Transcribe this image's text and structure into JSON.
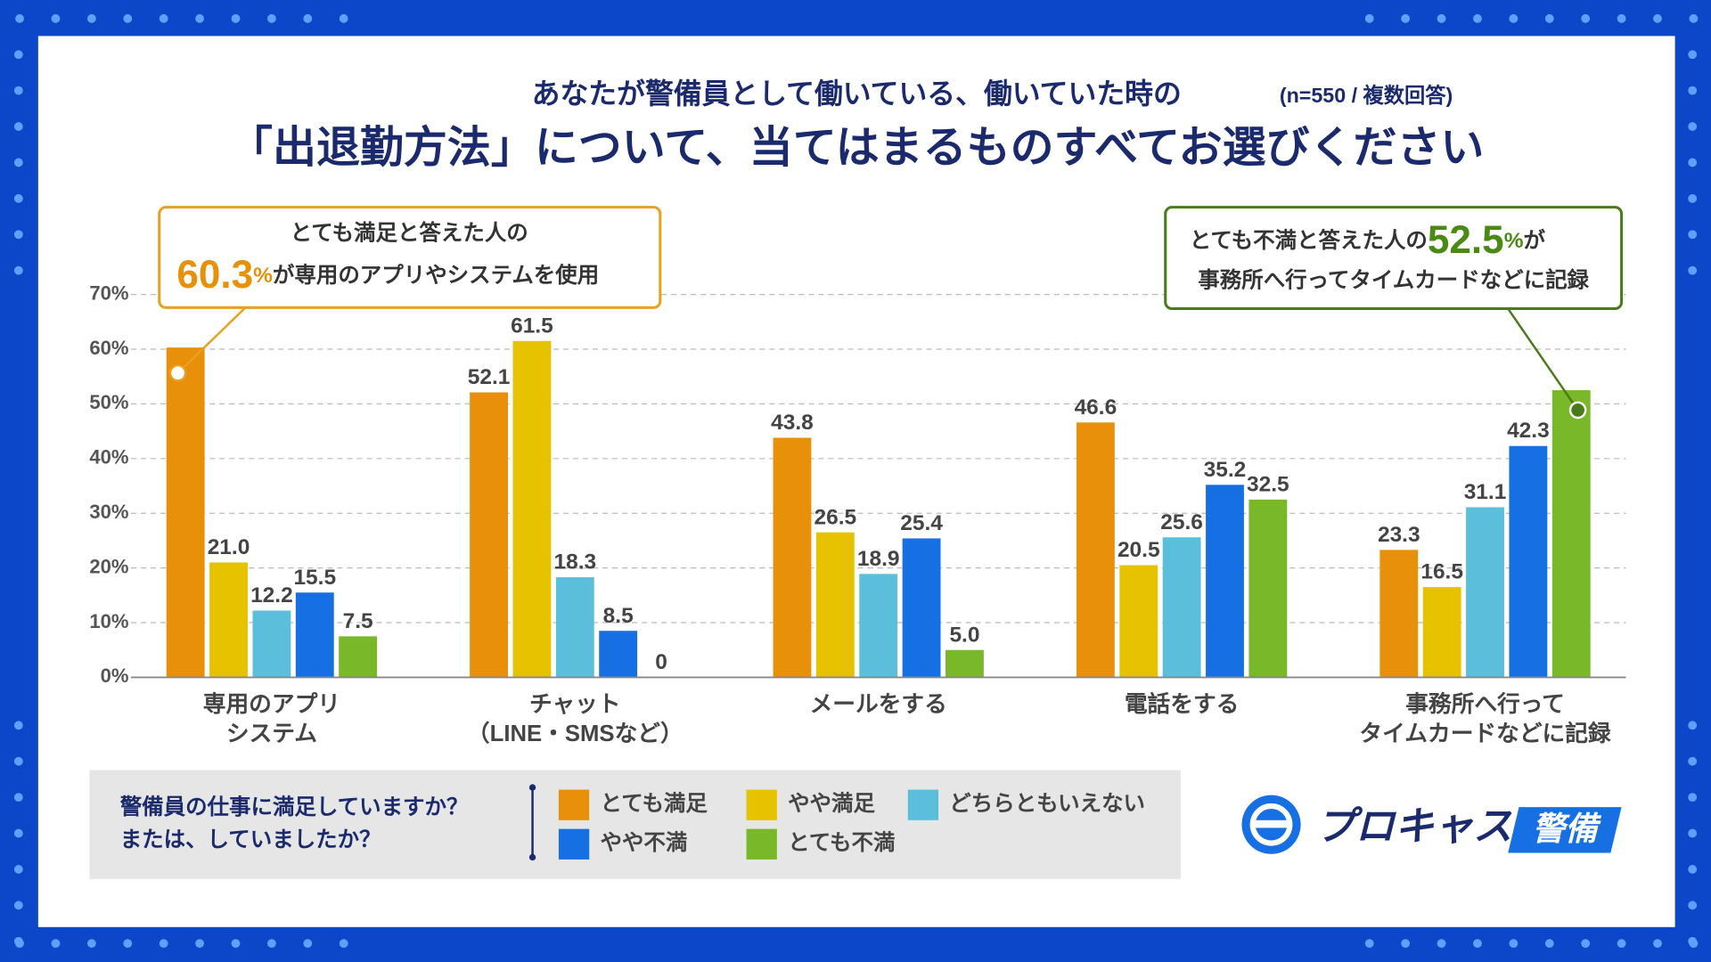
{
  "chart_data": {
    "type": "bar",
    "title": "あなたが警備員として働いている、働いていた時の",
    "subtitle": "(n=550 / 複数回答)",
    "question": "「出退勤方法」について、当てはまるものすべてお選びください",
    "categories": [
      [
        "専用のアプリ",
        "システム"
      ],
      [
        "チャット",
        "（LINE・SMSなど）"
      ],
      [
        "メールをする"
      ],
      [
        "電話をする"
      ],
      [
        "事務所へ行って",
        "タイムカードなどに記録"
      ]
    ],
    "series": [
      {
        "name": "とても満足",
        "color": "#e8900a",
        "values": [
          60.3,
          52.1,
          43.8,
          46.6,
          23.3
        ],
        "value_labels": [
          null,
          "52.1",
          "43.8",
          "46.6",
          "23.3"
        ]
      },
      {
        "name": "やや満足",
        "color": "#e6c200",
        "values": [
          21.0,
          61.5,
          26.5,
          20.5,
          16.5
        ],
        "value_labels": [
          "21.0",
          "61.5",
          "26.5",
          "20.5",
          "16.5"
        ]
      },
      {
        "name": "どちらともいえない",
        "color": "#5bbfdc",
        "values": [
          12.2,
          18.3,
          18.9,
          25.6,
          31.1
        ],
        "value_labels": [
          "12.2",
          "18.3",
          "18.9",
          "25.6",
          "31.1"
        ]
      },
      {
        "name": "やや不満",
        "color": "#1670e4",
        "values": [
          15.5,
          8.5,
          25.4,
          35.2,
          42.3
        ],
        "value_labels": [
          "15.5",
          "8.5",
          "25.4",
          "35.2",
          "42.3"
        ]
      },
      {
        "name": "とても不満",
        "color": "#79b828",
        "values": [
          7.5,
          0,
          5.0,
          32.5,
          52.5
        ],
        "value_labels": [
          "7.5",
          "0",
          "5.0",
          "32.5",
          null
        ]
      }
    ],
    "ylim": [
      0,
      70
    ],
    "yticks": [
      {
        "value": 0,
        "label": "0%"
      },
      {
        "value": 10,
        "label": "10%"
      },
      {
        "value": 20,
        "label": "20%"
      },
      {
        "value": 30,
        "label": "30%"
      },
      {
        "value": 40,
        "label": "40%"
      },
      {
        "value": 50,
        "label": "50%"
      },
      {
        "value": 60,
        "label": "60%"
      },
      {
        "value": 70,
        "label": "70%"
      }
    ],
    "grid": true,
    "legend_title": [
      "警備員の仕事に満足していますか？",
      "または、していましたか？"
    ],
    "annotations": [
      {
        "line1": "とても満足と答えた人の",
        "number": "60.3",
        "unit": "%",
        "line2": "が専用のアプリやシステムを使用"
      },
      {
        "line1": "とても不満と答えた人の",
        "number": "52.5",
        "unit": "%",
        "suffix": "が",
        "line2": "事務所へ行ってタイムカードなどに記録"
      }
    ],
    "logo": {
      "name": "プロキャス",
      "tag": "警備"
    }
  }
}
